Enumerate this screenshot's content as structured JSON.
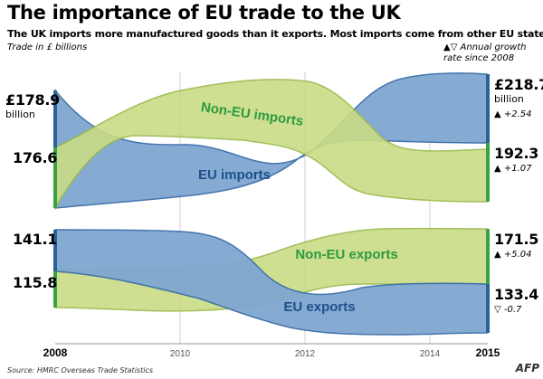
{
  "header": {
    "title": "The importance of EU trade to the UK",
    "subtitle": "The UK imports more manufactured goods than it exports. Most imports come from other EU states",
    "unit": "Trade in £ billions",
    "growth_note": "▲▽ Annual growth rate since 2008"
  },
  "colors": {
    "eu": "#7fa7d1",
    "eu_edge": "#3a6ea8",
    "non_eu": "#c9dc86",
    "non_eu_edge": "#9ab84a",
    "label": "#2e9a3e"
  },
  "source": "Source: HMRC Overseas Trade Statistics",
  "logo": "AFP",
  "chart_data": [
    {
      "type": "area",
      "name_hint": "imports",
      "x": [
        2008,
        2015
      ],
      "series": [
        {
          "name": "Non-EU imports",
          "values": [
            176.6,
            192.3
          ],
          "labels": [
            "176.6",
            "192.3"
          ],
          "growth": "▲ +1.07"
        },
        {
          "name": "EU imports",
          "values": [
            178.9,
            218.7
          ],
          "labels": [
            "£178.9",
            "£218.7"
          ],
          "sublabels": [
            "billion",
            "billion"
          ],
          "growth": "▲ +2.54"
        }
      ]
    },
    {
      "type": "area",
      "name_hint": "exports",
      "x": [
        2008,
        2015
      ],
      "series": [
        {
          "name": "Non-EU exports",
          "values": [
            115.8,
            171.5
          ],
          "labels": [
            "115.8",
            "171.5"
          ],
          "growth": "▲ +5.04"
        },
        {
          "name": "EU exports",
          "values": [
            141.1,
            133.4
          ],
          "labels": [
            "141.1",
            "133.4"
          ],
          "growth": "▽ -0.7"
        }
      ]
    }
  ],
  "xaxis": {
    "ticks": [
      "2008",
      "2010",
      "2012",
      "2014",
      "2015"
    ]
  }
}
